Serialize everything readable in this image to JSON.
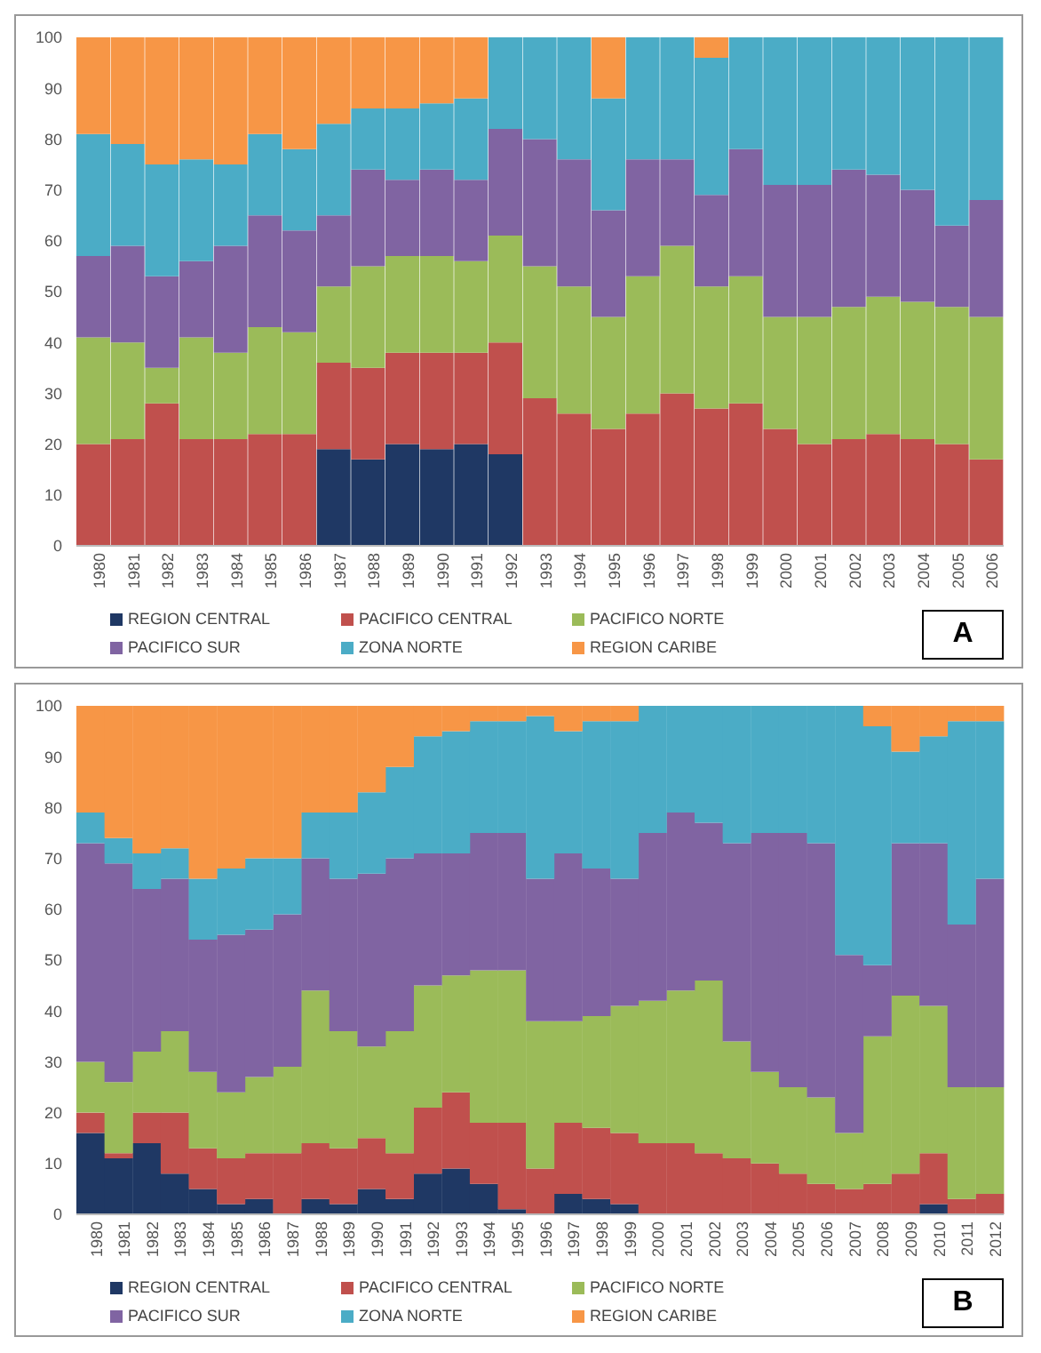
{
  "chart_data": [
    {
      "type": "bar",
      "stacked": true,
      "categories": [
        "1980",
        "1981",
        "1982",
        "1983",
        "1984",
        "1985",
        "1986",
        "1987",
        "1988",
        "1989",
        "1990",
        "1991",
        "1992",
        "1993",
        "1994",
        "1995",
        "1996",
        "1997",
        "1998",
        "1999",
        "2000",
        "2001",
        "2002",
        "2003",
        "2004",
        "2005",
        "2006"
      ],
      "ylim": [
        0,
        100
      ],
      "yticks": [
        0,
        10,
        20,
        30,
        40,
        50,
        60,
        70,
        80,
        90,
        100
      ],
      "legend": "bottom",
      "annotations": [
        "A"
      ],
      "series": [
        {
          "name": "REGION CENTRAL",
          "color": "#1f3864",
          "values": [
            0,
            0,
            0,
            0,
            0,
            0,
            0,
            19,
            17,
            20,
            19,
            20,
            18,
            0,
            0,
            0,
            0,
            0,
            0,
            0,
            0,
            0,
            0,
            0,
            0,
            0,
            0
          ]
        },
        {
          "name": "PACIFICO CENTRAL",
          "color": "#c0504d",
          "values": [
            20,
            21,
            28,
            21,
            21,
            22,
            22,
            17,
            18,
            18,
            19,
            18,
            22,
            29,
            26,
            23,
            26,
            30,
            27,
            28,
            23,
            20,
            21,
            22,
            21,
            20,
            17
          ]
        },
        {
          "name": "PACIFICO NORTE",
          "color": "#9bbb59",
          "values": [
            21,
            19,
            7,
            20,
            17,
            21,
            20,
            15,
            20,
            19,
            19,
            18,
            21,
            26,
            25,
            22,
            27,
            29,
            24,
            25,
            22,
            25,
            26,
            27,
            27,
            27,
            28
          ]
        },
        {
          "name": "PACIFICO SUR",
          "color": "#8064a2",
          "values": [
            16,
            19,
            18,
            15,
            21,
            22,
            20,
            14,
            19,
            15,
            17,
            16,
            21,
            25,
            25,
            21,
            23,
            17,
            18,
            25,
            26,
            26,
            27,
            24,
            22,
            16,
            23
          ]
        },
        {
          "name": "ZONA NORTE",
          "color": "#4bacc6",
          "values": [
            24,
            20,
            22,
            20,
            16,
            16,
            16,
            18,
            12,
            14,
            13,
            16,
            18,
            20,
            24,
            22,
            24,
            24,
            27,
            22,
            29,
            29,
            26,
            27,
            30,
            37,
            32
          ]
        },
        {
          "name": "REGION CARIBE",
          "color": "#f79646",
          "values": [
            19,
            21,
            25,
            24,
            25,
            19,
            22,
            17,
            14,
            14,
            13,
            12,
            0,
            0,
            0,
            12,
            0,
            0,
            4,
            0,
            0,
            0,
            0,
            0,
            0,
            0,
            0
          ]
        }
      ]
    },
    {
      "type": "bar",
      "stacked": true,
      "categories": [
        "1980",
        "1981",
        "1982",
        "1983",
        "1984",
        "1985",
        "1986",
        "1987",
        "1988",
        "1989",
        "1990",
        "1991",
        "1992",
        "1993",
        "1994",
        "1995",
        "1996",
        "1997",
        "1998",
        "1999",
        "2000",
        "2001",
        "2002",
        "2003",
        "2004",
        "2005",
        "2006",
        "2007",
        "2008",
        "2009",
        "2010",
        "2011",
        "2012"
      ],
      "ylim": [
        0,
        100
      ],
      "yticks": [
        0,
        10,
        20,
        30,
        40,
        50,
        60,
        70,
        80,
        90,
        100
      ],
      "legend": "bottom",
      "annotations": [
        "B"
      ],
      "series": [
        {
          "name": "REGION CENTRAL",
          "color": "#1f3864",
          "values": [
            16,
            11,
            14,
            8,
            5,
            2,
            3,
            0,
            3,
            2,
            5,
            3,
            8,
            9,
            6,
            1,
            0,
            4,
            3,
            2,
            0,
            0,
            0,
            0,
            0,
            0,
            0,
            0,
            0,
            0,
            2,
            0,
            0
          ]
        },
        {
          "name": "PACIFICO CENTRAL",
          "color": "#c0504d",
          "values": [
            4,
            1,
            6,
            12,
            8,
            9,
            9,
            12,
            11,
            11,
            10,
            9,
            13,
            15,
            12,
            17,
            9,
            14,
            14,
            14,
            14,
            14,
            12,
            11,
            10,
            8,
            6,
            5,
            6,
            8,
            10,
            3,
            4
          ]
        },
        {
          "name": "PACIFICO NORTE",
          "color": "#9bbb59",
          "values": [
            10,
            14,
            12,
            16,
            15,
            13,
            15,
            17,
            30,
            23,
            18,
            24,
            24,
            23,
            30,
            30,
            29,
            20,
            22,
            25,
            28,
            30,
            34,
            23,
            18,
            17,
            17,
            11,
            29,
            35,
            29,
            22,
            21
          ]
        },
        {
          "name": "PACIFICO SUR",
          "color": "#8064a2",
          "values": [
            43,
            43,
            32,
            30,
            26,
            31,
            29,
            30,
            26,
            30,
            34,
            34,
            26,
            24,
            27,
            27,
            28,
            33,
            29,
            25,
            33,
            35,
            31,
            39,
            47,
            50,
            50,
            35,
            14,
            30,
            32,
            32,
            41
          ]
        },
        {
          "name": "ZONA NORTE",
          "color": "#4bacc6",
          "values": [
            6,
            5,
            7,
            6,
            12,
            13,
            14,
            11,
            9,
            13,
            16,
            18,
            23,
            24,
            22,
            22,
            32,
            24,
            29,
            31,
            25,
            21,
            23,
            27,
            25,
            25,
            27,
            49,
            47,
            18,
            21,
            40,
            31
          ]
        },
        {
          "name": "REGION CARIBE",
          "color": "#f79646",
          "values": [
            21,
            26,
            29,
            28,
            34,
            32,
            30,
            30,
            21,
            21,
            17,
            12,
            6,
            5,
            3,
            3,
            2,
            5,
            3,
            3,
            0,
            0,
            0,
            0,
            0,
            0,
            0,
            0,
            4,
            9,
            6,
            3,
            3
          ]
        }
      ]
    }
  ]
}
